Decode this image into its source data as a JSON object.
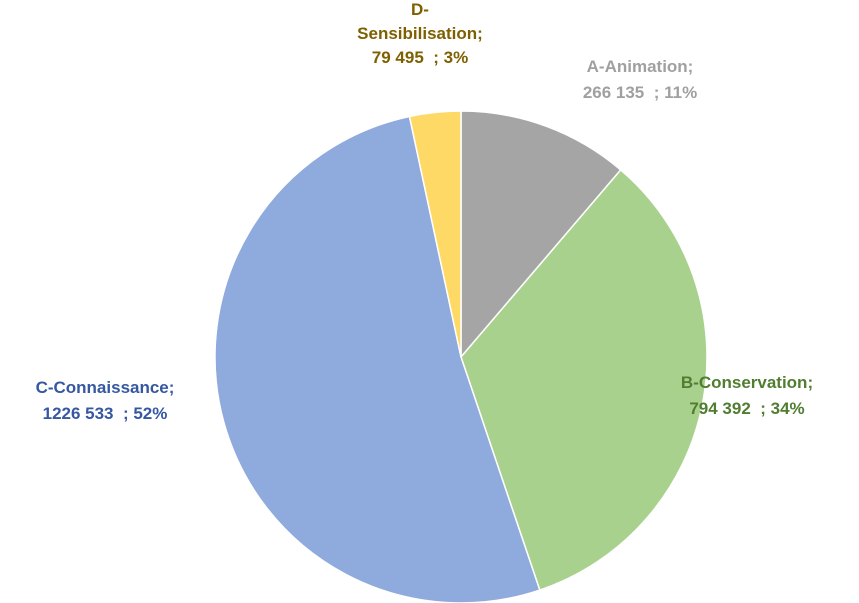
{
  "chart_data": {
    "type": "pie",
    "categories": [
      "A-Animation;",
      "B-Conservation;",
      "C-Connaissance;",
      "D-Sensibilisation;"
    ],
    "values": [
      266135,
      794392,
      1226533,
      79495
    ],
    "value_labels": [
      "266 135  ; 11%",
      "794 392  ; 34%",
      "1226 533  ; 52%",
      "79 495  ; 3%"
    ],
    "colors": [
      "#a5a5a5",
      "#a9d18e",
      "#8faadc",
      "#ffd966"
    ],
    "label_colors": [
      "#a0a0a0",
      "#507d30",
      "#3558a0",
      "#7f6000"
    ]
  }
}
